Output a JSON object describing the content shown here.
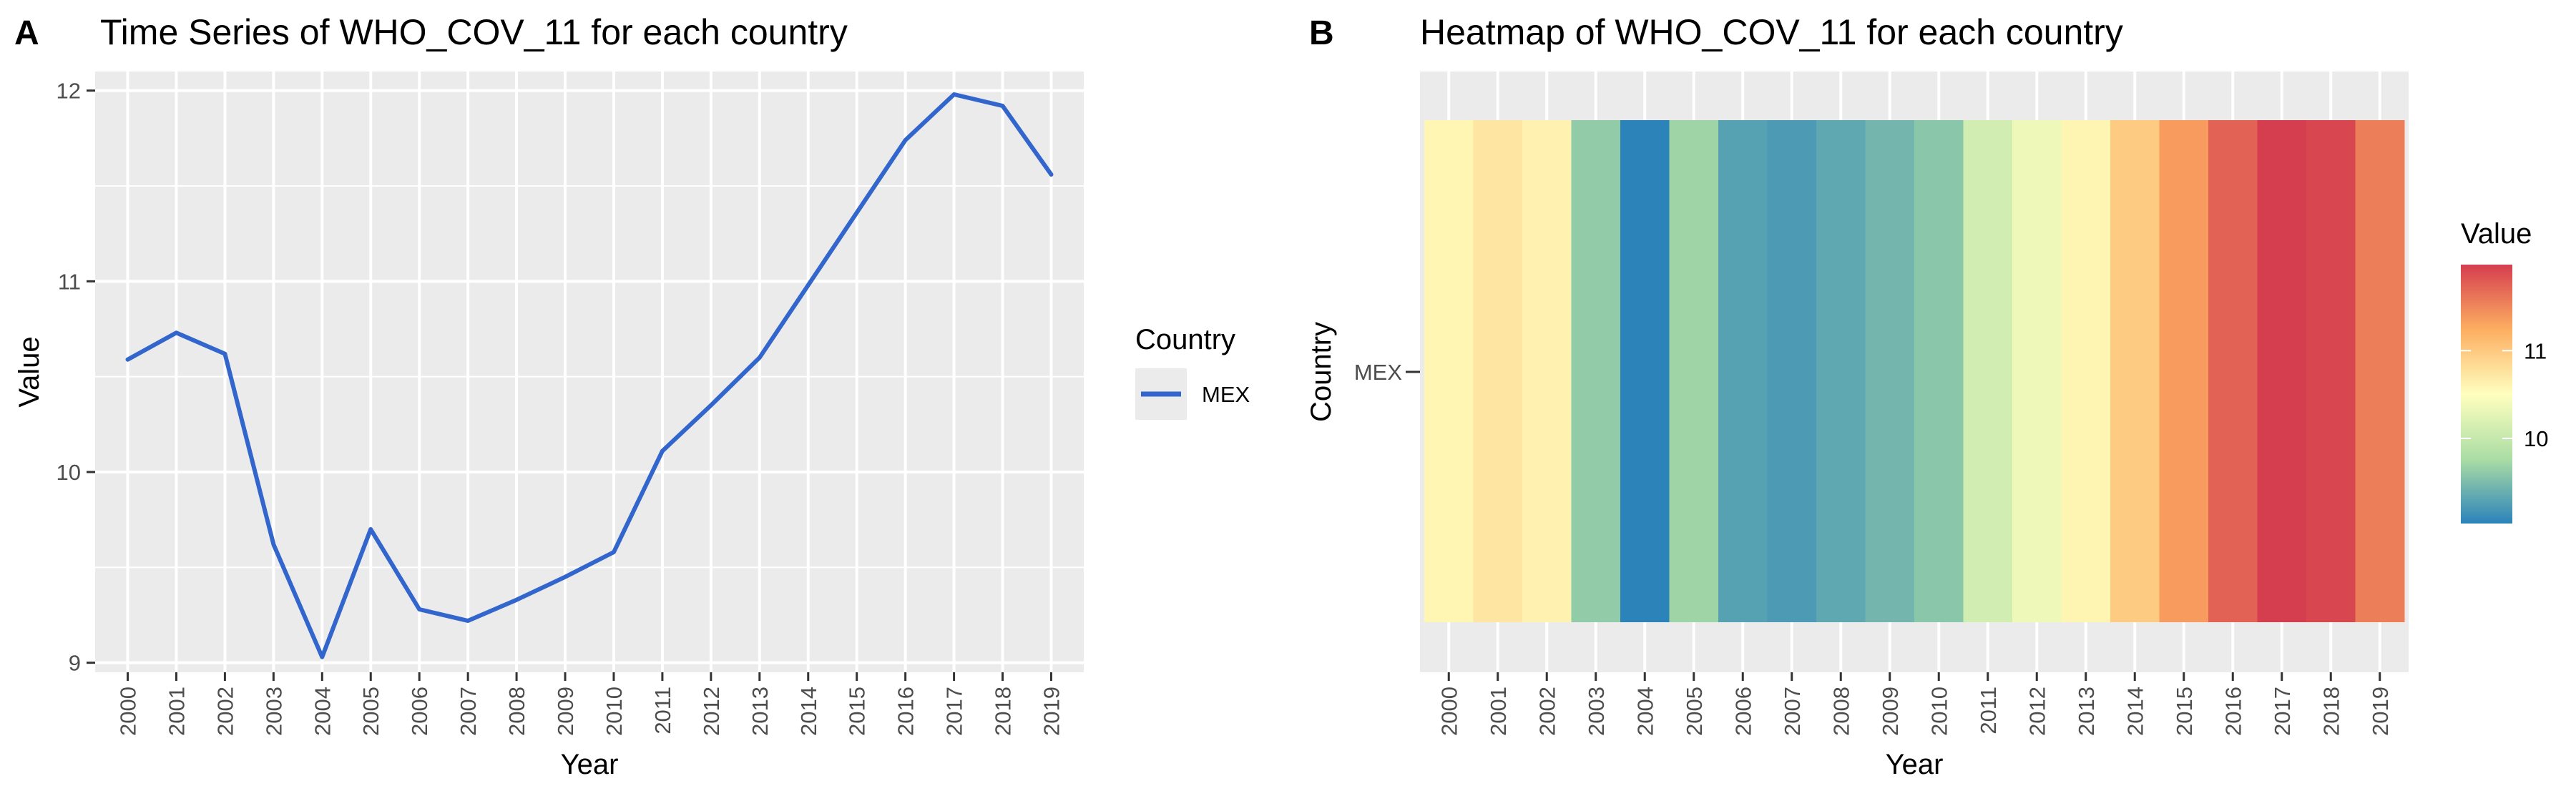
{
  "panels": {
    "a": {
      "tag": "A",
      "title": "Time Series of WHO_COV_11 for each country",
      "xlabel": "Year",
      "ylabel": "Value"
    },
    "b": {
      "tag": "B",
      "title": "Heatmap of WHO_COV_11 for each country",
      "xlabel": "Year",
      "ylabel": "Country",
      "row_label": "MEX"
    }
  },
  "legend_a": {
    "title": "Country",
    "label": "MEX"
  },
  "legend_b": {
    "title": "Value",
    "ticks": [
      "11",
      "10"
    ]
  },
  "colors": {
    "panel_bg": "#ebebeb",
    "grid": "#ffffff",
    "line": "#3366cc",
    "scale": [
      "#2b83ba",
      "#abdda4",
      "#ffffbf",
      "#fdae61",
      "#d53e4f"
    ]
  },
  "chart_data": [
    {
      "type": "line",
      "title": "Time Series of WHO_COV_11 for each country",
      "xlabel": "Year",
      "ylabel": "Value",
      "x": [
        2000,
        2001,
        2002,
        2003,
        2004,
        2005,
        2006,
        2007,
        2008,
        2009,
        2010,
        2011,
        2012,
        2013,
        2014,
        2015,
        2016,
        2017,
        2018,
        2019
      ],
      "x_ticks": [
        "2000",
        "2001",
        "2002",
        "2003",
        "2004",
        "2005",
        "2006",
        "2007",
        "2008",
        "2009",
        "2010",
        "2011",
        "2012",
        "2013",
        "2014",
        "2015",
        "2016",
        "2017",
        "2018",
        "2019"
      ],
      "y_ticks": [
        "9",
        "10",
        "11",
        "12"
      ],
      "ylim": [
        8.95,
        12.1
      ],
      "grid": true,
      "legend_position": "right",
      "series": [
        {
          "name": "MEX",
          "color": "#3366cc",
          "values": [
            10.59,
            10.73,
            10.62,
            9.62,
            9.03,
            9.7,
            9.28,
            9.22,
            9.33,
            9.45,
            9.58,
            10.11,
            10.35,
            10.6,
            10.98,
            11.36,
            11.74,
            11.98,
            11.92,
            11.56
          ]
        }
      ]
    },
    {
      "type": "heatmap",
      "title": "Heatmap of WHO_COV_11 for each country",
      "xlabel": "Year",
      "ylabel": "Country",
      "x_ticks": [
        "2000",
        "2001",
        "2002",
        "2003",
        "2004",
        "2005",
        "2006",
        "2007",
        "2008",
        "2009",
        "2010",
        "2011",
        "2012",
        "2013",
        "2014",
        "2015",
        "2016",
        "2017",
        "2018",
        "2019"
      ],
      "rows": [
        "MEX"
      ],
      "values": [
        [
          10.59,
          10.73,
          10.62,
          9.62,
          9.03,
          9.7,
          9.28,
          9.22,
          9.33,
          9.45,
          9.58,
          10.11,
          10.35,
          10.6,
          10.98,
          11.36,
          11.74,
          11.98,
          11.92,
          11.56
        ]
      ],
      "color_range": [
        9.03,
        11.98
      ],
      "legend_title": "Value",
      "legend_position": "right"
    }
  ]
}
